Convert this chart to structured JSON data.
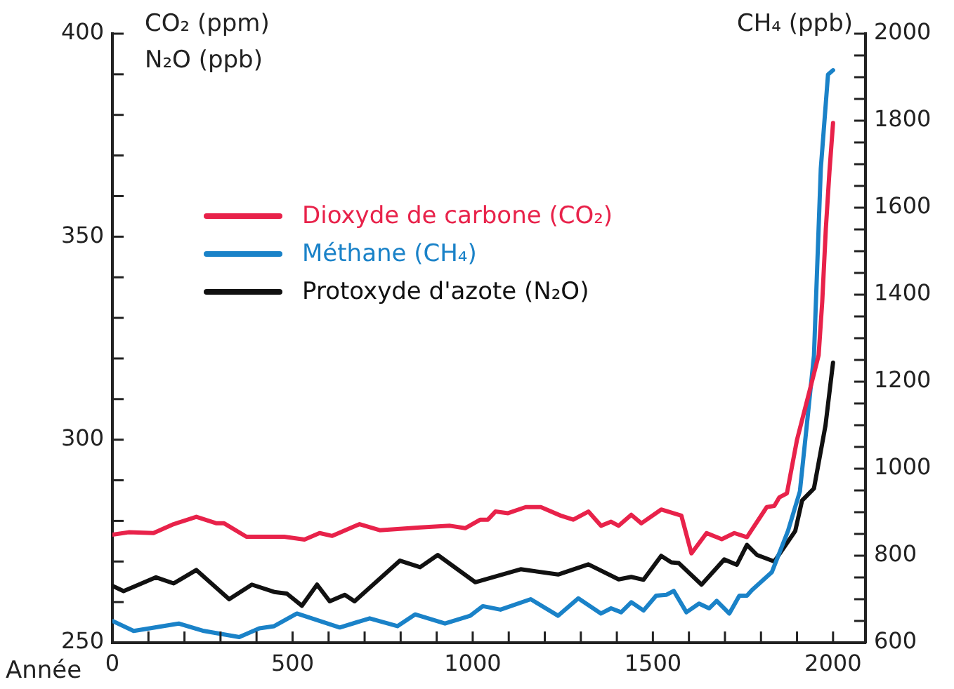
{
  "chart_data": {
    "type": "line",
    "xlabel": "Année",
    "ylabel": "CO₂ (ppm)\nN₂O (ppb)",
    "y2label": "CH₄ (ppb)",
    "legend": "top left",
    "marker": "none",
    "line_style": "solid",
    "grid": false,
    "xlim": [
      0,
      2090
    ],
    "xticks": [
      0,
      {
        "value": 100,
        "label": null
      },
      {
        "value": 200,
        "label": null
      },
      {
        "value": 300,
        "label": null
      },
      {
        "value": 400,
        "label": null
      },
      500,
      {
        "value": 600,
        "label": null
      },
      {
        "value": 700,
        "label": null
      },
      {
        "value": 800,
        "label": null
      },
      {
        "value": 900,
        "label": null
      },
      1000,
      {
        "value": 1100,
        "label": null
      },
      {
        "value": 1200,
        "label": null
      },
      {
        "value": 1300,
        "label": null
      },
      {
        "value": 1400,
        "label": null
      },
      1500,
      {
        "value": 1600,
        "label": null
      },
      {
        "value": 1700,
        "label": null
      },
      {
        "value": 1800,
        "label": null
      },
      {
        "value": 1900,
        "label": null
      },
      2000
    ],
    "ylim": [
      250,
      400
    ],
    "yticks": [
      250,
      {
        "value": 260,
        "label": null
      },
      {
        "value": 270,
        "label": null
      },
      {
        "value": 280,
        "label": null
      },
      {
        "value": 290,
        "label": null
      },
      300,
      {
        "value": 310,
        "label": null
      },
      {
        "value": 320,
        "label": null
      },
      {
        "value": 330,
        "label": null
      },
      {
        "value": 340,
        "label": null
      },
      350,
      {
        "value": 360,
        "label": null
      },
      {
        "value": 370,
        "label": null
      },
      {
        "value": 380,
        "label": null
      },
      {
        "value": 390,
        "label": null
      },
      400
    ],
    "y2lim": [
      600,
      2000
    ],
    "y2ticks": [
      600,
      {
        "value": 650,
        "label": null
      },
      {
        "value": 700,
        "label": null
      },
      {
        "value": 750,
        "label": null
      },
      800,
      {
        "value": 850,
        "label": null
      },
      {
        "value": 900,
        "label": null
      },
      {
        "value": 950,
        "label": null
      },
      1000,
      {
        "value": 1050,
        "label": null
      },
      {
        "value": 1100,
        "label": null
      },
      {
        "value": 1150,
        "label": null
      },
      1200,
      {
        "value": 1250,
        "label": null
      },
      {
        "value": 1300,
        "label": null
      },
      {
        "value": 1350,
        "label": null
      },
      1400,
      {
        "value": 1450,
        "label": null
      },
      {
        "value": 1500,
        "label": null
      },
      {
        "value": 1550,
        "label": null
      },
      1600,
      {
        "value": 1650,
        "label": null
      },
      {
        "value": 1700,
        "label": null
      },
      {
        "value": 1750,
        "label": null
      },
      1800,
      {
        "value": 1850,
        "label": null
      },
      {
        "value": 1900,
        "label": null
      },
      {
        "value": 1950,
        "label": null
      },
      2000
    ],
    "series": [
      {
        "name": "Dioxyde de carbone (CO₂)",
        "color": "#e8224a",
        "axis": "y",
        "x": [
          0,
          45,
          114,
          170,
          233,
          289,
          310,
          372,
          477,
          533,
          575,
          610,
          686,
          742,
          854,
          937,
          979,
          1021,
          1042,
          1063,
          1098,
          1147,
          1189,
          1244,
          1279,
          1321,
          1356,
          1384,
          1405,
          1440,
          1468,
          1523,
          1579,
          1607,
          1649,
          1691,
          1726,
          1761,
          1816,
          1837,
          1851,
          1872,
          1900,
          1940,
          1960,
          1970,
          1980,
          1990,
          2000
        ],
        "values": [
          276.6,
          277.2,
          277,
          279.2,
          281,
          279.4,
          279.4,
          276.1,
          276.1,
          275.4,
          277,
          276.3,
          279.2,
          277.7,
          278.4,
          278.8,
          278.2,
          280.3,
          280.3,
          282.3,
          281.9,
          283.4,
          283.4,
          281.3,
          280.3,
          282.3,
          278.8,
          279.8,
          278.8,
          281.5,
          279.4,
          282.8,
          281.3,
          272,
          277,
          275.5,
          277,
          276,
          283.4,
          283.7,
          285.8,
          286.8,
          300,
          313.8,
          320.8,
          334,
          352,
          366,
          378
        ]
      },
      {
        "name": "Méthane (CH₄)",
        "color": "#1a82c8",
        "axis": "y2",
        "x": [
          0,
          59,
          184,
          254,
          352,
          408,
          449,
          512,
          631,
          714,
          791,
          840,
          923,
          993,
          1028,
          1077,
          1161,
          1237,
          1293,
          1356,
          1384,
          1412,
          1440,
          1474,
          1509,
          1537,
          1558,
          1593,
          1628,
          1656,
          1677,
          1712,
          1740,
          1761,
          1775,
          1830,
          1875,
          1908,
          1927,
          1947,
          1966,
          1986,
          2000
        ],
        "values": [
          650,
          627,
          644,
          627,
          613,
          633,
          638,
          667,
          635,
          656,
          638,
          665,
          644,
          662,
          684,
          676,
          700,
          662,
          702,
          667,
          679,
          670,
          693,
          674,
          708,
          710,
          719,
          670,
          690,
          679,
          696,
          667,
          708,
          708,
          721,
          762,
          857,
          948,
          1099,
          1260,
          1690,
          1906,
          1916
        ]
      },
      {
        "name": "Protoxyde d'azote (N₂O)",
        "color": "#111111",
        "axis": "y",
        "x": [
          0,
          31,
          121,
          170,
          233,
          324,
          387,
          449,
          484,
          526,
          568,
          603,
          645,
          672,
          798,
          854,
          903,
          1007,
          1133,
          1237,
          1321,
          1405,
          1440,
          1474,
          1523,
          1551,
          1572,
          1635,
          1698,
          1733,
          1761,
          1789,
          1837,
          1895,
          1914,
          1947,
          1979,
          2000
        ],
        "values": [
          264,
          262.7,
          266.1,
          264.6,
          267.9,
          260.7,
          264.3,
          262.5,
          262.1,
          259.1,
          264.3,
          260.2,
          261.8,
          260.2,
          270.2,
          268.6,
          271.6,
          264.9,
          268.1,
          266.8,
          269.3,
          265.6,
          266.2,
          265.5,
          271.4,
          269.8,
          269.6,
          264.3,
          270.5,
          269.2,
          274.1,
          271.6,
          270,
          277.5,
          285,
          288,
          303.5,
          319
        ]
      }
    ]
  }
}
